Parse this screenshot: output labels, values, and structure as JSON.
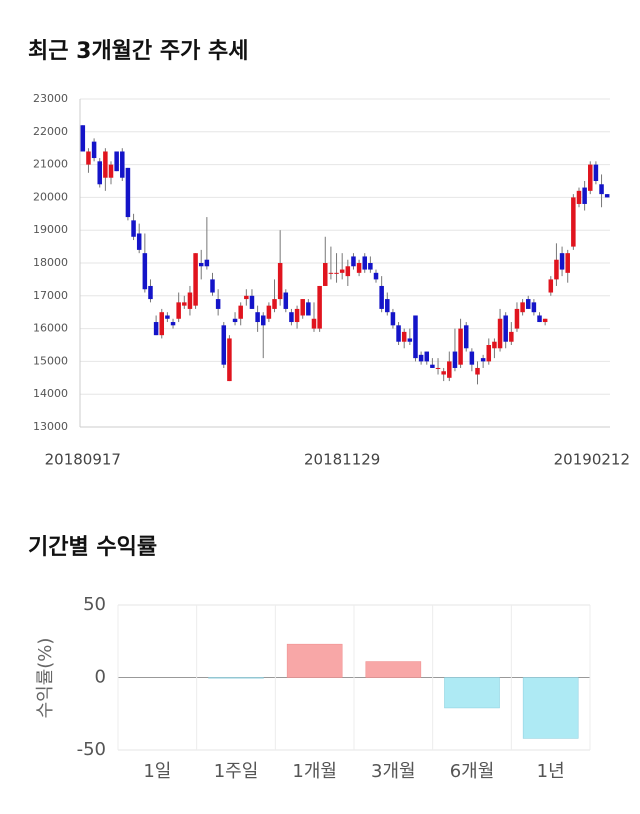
{
  "chart_data": [
    {
      "type": "candlestick",
      "title": "최근 3개월간 주가 추세",
      "categories": [
        "20180917",
        null,
        null,
        null,
        null,
        null,
        null,
        null,
        null,
        null,
        null,
        null,
        null,
        null,
        null,
        null,
        null,
        null,
        null,
        null,
        null,
        null,
        null,
        null,
        null,
        null,
        null,
        null,
        null,
        null,
        null,
        null,
        null,
        null,
        null,
        null,
        null,
        null,
        null,
        null,
        null,
        null,
        null,
        null,
        null,
        null,
        "20181129",
        null,
        null,
        null,
        null,
        null,
        null,
        null,
        null,
        null,
        null,
        null,
        null,
        null,
        null,
        null,
        null,
        null,
        null,
        null,
        null,
        null,
        null,
        null,
        null,
        null,
        null,
        null,
        null,
        null,
        null,
        null,
        null,
        null,
        null,
        null,
        null,
        null,
        null,
        null,
        null,
        null,
        null,
        null,
        null,
        null,
        null,
        "20190212"
      ],
      "candles": [
        [
          22200,
          22200,
          21400,
          21400
        ],
        [
          21000,
          21500,
          20750,
          21400
        ],
        [
          21700,
          21800,
          21100,
          21200
        ],
        [
          21100,
          21200,
          20300,
          20400
        ],
        [
          20600,
          21500,
          20200,
          21400
        ],
        [
          20600,
          21100,
          20400,
          21000
        ],
        [
          21400,
          21400,
          20800,
          20800
        ],
        [
          21400,
          21500,
          20500,
          20600
        ],
        [
          20900,
          20900,
          19300,
          19400
        ],
        [
          19300,
          19500,
          18700,
          18800
        ],
        [
          18900,
          19200,
          18300,
          18400
        ],
        [
          18300,
          18900,
          17100,
          17200
        ],
        [
          17300,
          17500,
          16800,
          16900
        ],
        [
          16200,
          16400,
          15800,
          15800
        ],
        [
          15800,
          16600,
          15700,
          16500
        ],
        [
          16400,
          16500,
          16200,
          16300
        ],
        [
          16200,
          16300,
          16000,
          16100
        ],
        [
          16300,
          17100,
          16200,
          16800
        ],
        [
          16700,
          17000,
          16600,
          16800
        ],
        [
          16600,
          17300,
          16400,
          17100
        ],
        [
          16700,
          18300,
          16600,
          18300
        ],
        [
          18000,
          18400,
          17500,
          17900
        ],
        [
          18100,
          19400,
          17800,
          17900
        ],
        [
          17500,
          17700,
          17000,
          17100
        ],
        [
          16900,
          17200,
          16400,
          16600
        ],
        [
          16100,
          16200,
          14800,
          14900
        ],
        [
          14400,
          15800,
          14400,
          15700
        ],
        [
          16300,
          16500,
          16100,
          16200
        ],
        [
          16300,
          16800,
          16100,
          16700
        ],
        [
          16900,
          17200,
          16700,
          17000
        ],
        [
          17000,
          17200,
          16600,
          16600
        ],
        [
          16500,
          16700,
          15900,
          16200
        ],
        [
          16400,
          16500,
          15100,
          16100
        ],
        [
          16300,
          16800,
          16200,
          16700
        ],
        [
          16600,
          17500,
          16500,
          16900
        ],
        [
          16900,
          19000,
          16700,
          18000
        ],
        [
          17100,
          17200,
          16500,
          16600
        ],
        [
          16500,
          16600,
          16100,
          16200
        ],
        [
          16200,
          16700,
          16000,
          16600
        ],
        [
          16400,
          16900,
          16300,
          16900
        ],
        [
          16800,
          16900,
          16400,
          16400
        ],
        [
          16000,
          16800,
          15900,
          16300
        ],
        [
          16000,
          17300,
          15900,
          17300
        ],
        [
          17300,
          18800,
          17300,
          18000
        ],
        [
          17700,
          18500,
          17500,
          17700
        ],
        [
          17700,
          18300,
          17400,
          17700
        ],
        [
          17700,
          18300,
          17500,
          17800
        ],
        [
          17600,
          18100,
          17300,
          17900
        ],
        [
          18200,
          18300,
          17800,
          17900
        ],
        [
          17700,
          18100,
          17600,
          18000
        ],
        [
          18200,
          18300,
          17700,
          17800
        ],
        [
          18000,
          18200,
          17700,
          17800
        ],
        [
          17700,
          17800,
          17400,
          17500
        ],
        [
          17300,
          17600,
          16500,
          16600
        ],
        [
          16900,
          17100,
          16400,
          16500
        ],
        [
          16500,
          16600,
          16000,
          16100
        ],
        [
          16100,
          16200,
          15500,
          15600
        ],
        [
          15600,
          16000,
          15400,
          15900
        ],
        [
          15700,
          16000,
          15500,
          15600
        ],
        [
          16400,
          16400,
          15000,
          15100
        ],
        [
          15200,
          15300,
          14900,
          15000
        ],
        [
          15300,
          15300,
          14900,
          15000
        ],
        [
          14900,
          15100,
          14800,
          14800
        ],
        [
          14800,
          15100,
          14600,
          14800
        ],
        [
          14600,
          14800,
          14400,
          14700
        ],
        [
          14500,
          15300,
          14400,
          15000
        ],
        [
          15300,
          16000,
          14700,
          14800
        ],
        [
          14900,
          16300,
          14800,
          16000
        ],
        [
          16100,
          16200,
          15300,
          15400
        ],
        [
          15300,
          15400,
          14700,
          14900
        ],
        [
          14600,
          15000,
          14300,
          14800
        ],
        [
          15100,
          15200,
          14800,
          15000
        ],
        [
          15000,
          15700,
          14900,
          15500
        ],
        [
          15400,
          15700,
          15100,
          15600
        ],
        [
          15400,
          16600,
          15300,
          16300
        ],
        [
          16400,
          16500,
          15400,
          15600
        ],
        [
          15600,
          16200,
          15500,
          15900
        ],
        [
          16000,
          16800,
          15900,
          16600
        ],
        [
          16500,
          16900,
          16400,
          16800
        ],
        [
          16900,
          17000,
          16600,
          16600
        ],
        [
          16800,
          16900,
          16400,
          16500
        ],
        [
          16400,
          16500,
          16200,
          16200
        ],
        [
          16200,
          16300,
          16100,
          16300
        ],
        [
          17100,
          17600,
          17000,
          17500
        ],
        [
          17500,
          18600,
          17300,
          18100
        ],
        [
          18300,
          18500,
          17600,
          17800
        ],
        [
          17700,
          18400,
          17400,
          18300
        ],
        [
          18500,
          20100,
          18400,
          20000
        ],
        [
          19800,
          20300,
          19700,
          20200
        ],
        [
          20300,
          20500,
          19600,
          19800
        ],
        [
          20200,
          21100,
          20100,
          21000
        ],
        [
          21000,
          21100,
          20400,
          20500
        ],
        [
          20400,
          20700,
          19700,
          20100
        ],
        [
          20100,
          20100,
          20000,
          20000
        ]
      ],
      "up_color": "#e0141e",
      "down_color": "#1414c8",
      "ylim": [
        13000,
        23000
      ],
      "yticks": [
        13000,
        14000,
        15000,
        16000,
        17000,
        18000,
        19000,
        20000,
        21000,
        22000,
        23000
      ],
      "grid": true
    },
    {
      "type": "bar",
      "title": "기간별 수익률",
      "y_label": "수익률(%)",
      "categories": [
        "1일",
        "1주일",
        "1개월",
        "3개월",
        "6개월",
        "1년"
      ],
      "values": [
        0,
        -0.5,
        23,
        11,
        -21,
        -42
      ],
      "positive_color": "#f8a7a7",
      "negative_color": "#aeeaf4",
      "ylim": [
        -50,
        50
      ],
      "yticks": [
        -50,
        0,
        50
      ],
      "grid": true
    }
  ]
}
